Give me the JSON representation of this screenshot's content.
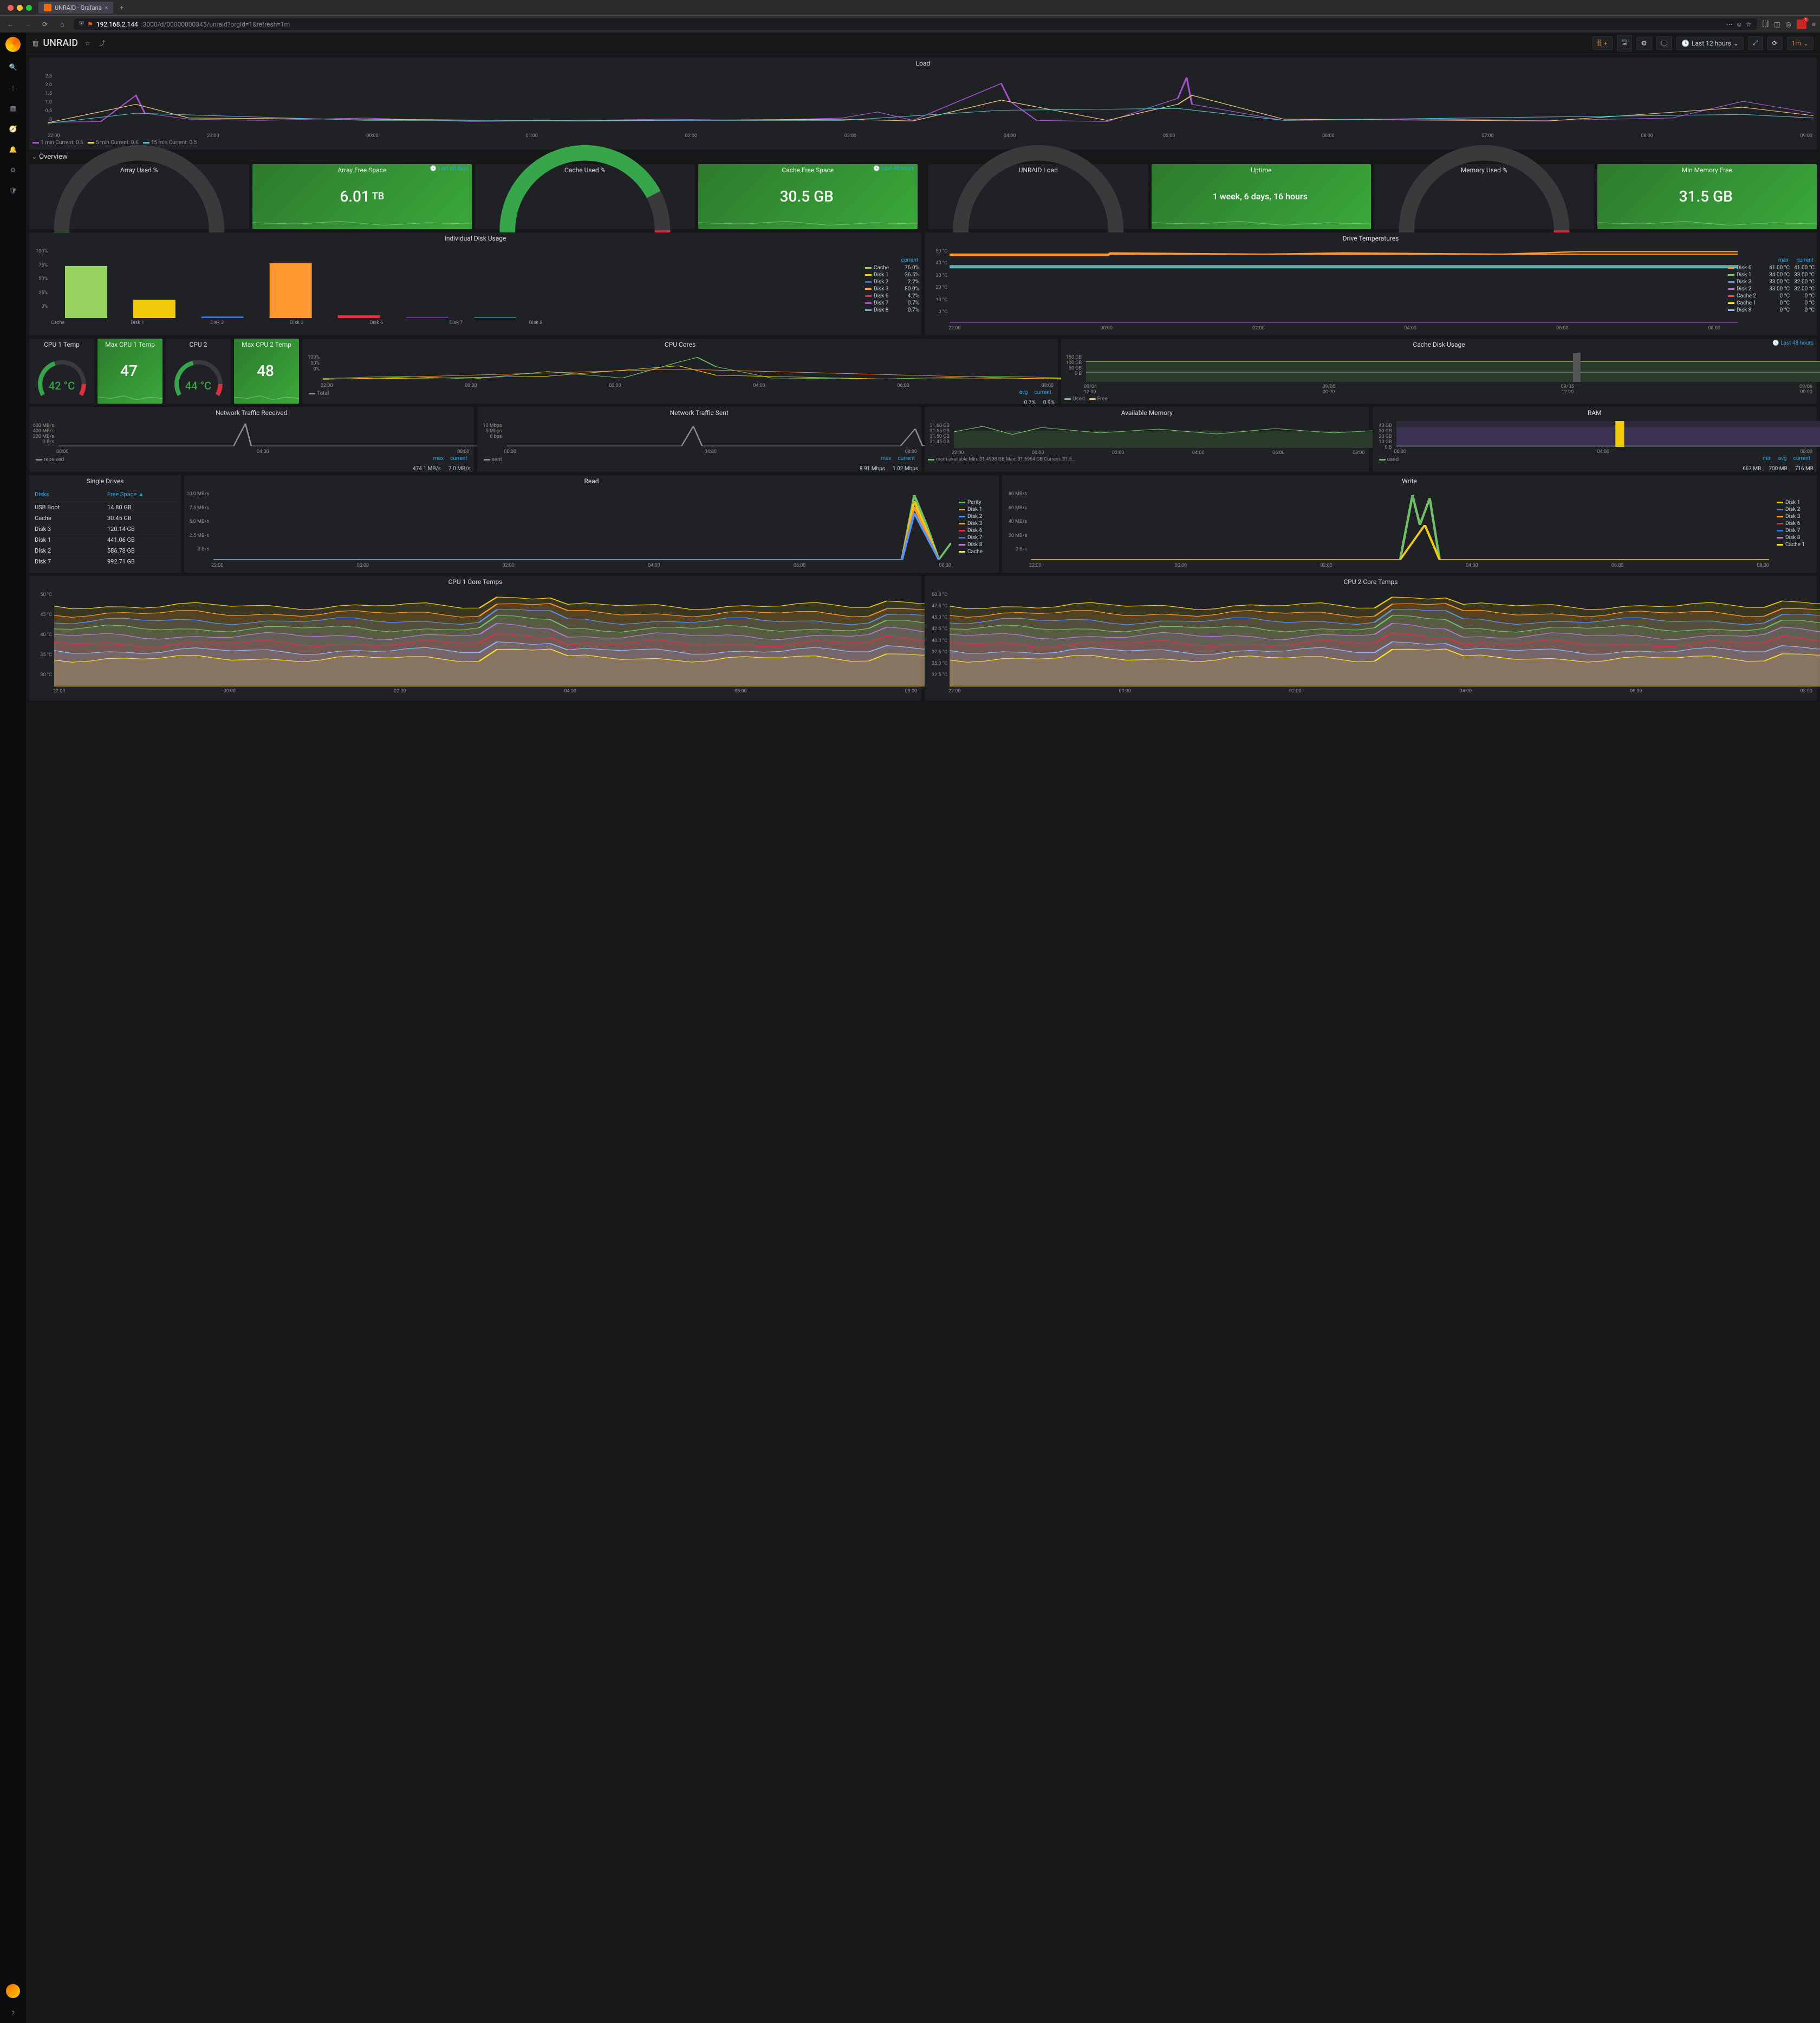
{
  "browser": {
    "tab_title": "UNRAID - Grafana",
    "url_prefix": "192.168.2.144",
    "url_suffix": ":3000/d/00000000345/unraid?orgId=1&refresh=1m"
  },
  "topbar": {
    "title": "UNRAID",
    "time_range": "Last 12 hours",
    "refresh": "1m"
  },
  "row_overview": "Overview",
  "load_panel": {
    "title": "Load",
    "yticks": [
      "2.5",
      "2.0",
      "1.5",
      "1.0",
      "0.5",
      "0"
    ],
    "xticks": [
      "22:00",
      "23:00",
      "00:00",
      "01:00",
      "02:00",
      "03:00",
      "04:00",
      "05:00",
      "06:00",
      "07:00",
      "08:00",
      "09:00"
    ],
    "legend": [
      {
        "label": "1 min",
        "current": "0.6",
        "color": "#a352cc"
      },
      {
        "label": "5 min",
        "current": "0.6",
        "color": "#e5c07b"
      },
      {
        "label": "15 min",
        "current": "0.5",
        "color": "#56b6c2"
      }
    ]
  },
  "stat_row1": [
    {
      "type": "gauge",
      "title": "Array Used %",
      "value": "12%",
      "color": "#37a64a",
      "pct": 0.12
    },
    {
      "type": "bigstat",
      "title": "Array Free Space",
      "corner": "Last 60 days",
      "value": "6.01",
      "unit": "TB"
    },
    {
      "type": "gauge",
      "title": "Cache Used %",
      "value": "76%",
      "color": "#37a64a",
      "pct": 0.76,
      "warn": true
    },
    {
      "type": "bigstat",
      "title": "Cache Free Space",
      "corner": "Last 48 hours",
      "value": "30.5 GB",
      "unit": ""
    },
    {
      "type": "gauge",
      "title": "UNRAID Load",
      "value": "0.25%",
      "color": "#37a64a",
      "pct": 0.04
    },
    {
      "type": "bigstat",
      "title": "Uptime",
      "value": "1 week, 6 days, 16 hours",
      "unit": "",
      "small": true
    },
    {
      "type": "gauge",
      "title": "Memory Used %",
      "value": "2.1%",
      "color": "#37a64a",
      "pct": 0.05,
      "warn": true
    },
    {
      "type": "bigstat",
      "title": "Min Memory Free",
      "value": "31.5 GB",
      "unit": ""
    }
  ],
  "disk_usage": {
    "title": "Individual Disk Usage",
    "yticks": [
      "100%",
      "75%",
      "50%",
      "25%",
      "0%"
    ],
    "bars": [
      {
        "name": "Cache",
        "v": 76.0,
        "color": "#96d35f"
      },
      {
        "name": "Disk 1",
        "v": 26.5,
        "color": "#f2cc0c"
      },
      {
        "name": "Disk 2",
        "v": 2.2,
        "color": "#3274d9"
      },
      {
        "name": "Disk 3",
        "v": 80.0,
        "color": "#ff9830"
      },
      {
        "name": "Disk 6",
        "v": 4.2,
        "color": "#e02f44"
      },
      {
        "name": "Disk 7",
        "v": 0.7,
        "color": "#a352cc"
      },
      {
        "name": "Disk 8",
        "v": 0.7,
        "color": "#56b6c2"
      }
    ],
    "legend_hdr": "current"
  },
  "drive_temps": {
    "title": "Drive Temperatures",
    "yticks": [
      "50 °C",
      "40 °C",
      "30 °C",
      "20 °C",
      "10 °C",
      "0 °C"
    ],
    "xticks": [
      "22:00",
      "00:00",
      "02:00",
      "04:00",
      "06:00",
      "08:00"
    ],
    "hdr_max": "max",
    "hdr_cur": "current",
    "rows": [
      {
        "name": "Disk 6",
        "max": "41.00 °C",
        "cur": "41.00 °C",
        "color": "#ff9830"
      },
      {
        "name": "Disk 1",
        "max": "34.00 °C",
        "cur": "33.00 °C",
        "color": "#73bf69"
      },
      {
        "name": "Disk 3",
        "max": "33.00 °C",
        "cur": "32.00 °C",
        "color": "#5794f2"
      },
      {
        "name": "Disk 2",
        "max": "33.00 °C",
        "cur": "32.00 °C",
        "color": "#b877d9"
      },
      {
        "name": "Cache 2",
        "max": "0 °C",
        "cur": "0 °C",
        "color": "#f2495c"
      },
      {
        "name": "Cache 1",
        "max": "0 °C",
        "cur": "0 °C",
        "color": "#fade2a"
      },
      {
        "name": "Disk 8",
        "max": "0 °C",
        "cur": "0 °C",
        "color": "#8ab8ff"
      }
    ]
  },
  "cpu_row": [
    {
      "type": "gauge",
      "title": "CPU 1 Temp",
      "value": "42 °C",
      "color": "#37a64a",
      "pct": 0.42,
      "warn": true
    },
    {
      "type": "bigstat",
      "title": "Max CPU 1 Temp",
      "value": "47",
      "unit": ""
    },
    {
      "type": "gauge",
      "title": "CPU 2",
      "value": "44 °C",
      "color": "#37a64a",
      "pct": 0.44,
      "warn": true
    },
    {
      "type": "bigstat",
      "title": "Max CPU 2 Temp",
      "value": "48",
      "unit": ""
    }
  ],
  "cpu_cores": {
    "title": "CPU Cores",
    "yticks": [
      "100%",
      "50%",
      "0%"
    ],
    "xticks": [
      "22:00",
      "00:00",
      "02:00",
      "04:00",
      "06:00",
      "08:00"
    ],
    "legend": {
      "name": "Total",
      "avg": "0.7%",
      "cur": "0.9%"
    },
    "hdr_avg": "avg",
    "hdr_cur": "current"
  },
  "cache_disk": {
    "title": "Cache Disk Usage",
    "corner": "Last 48 hours",
    "yticks": [
      "150 GB",
      "100 GB",
      "50 GB",
      "0 B"
    ],
    "xticks": [
      "09/04",
      "09/05",
      "09/05",
      "09/06"
    ],
    "xticks2": [
      "12:00",
      "00:00",
      "12:00",
      "00:00"
    ],
    "legend": [
      {
        "name": "Used",
        "color": "#73bf69"
      },
      {
        "name": "Free",
        "color": "#f2cc0c"
      }
    ]
  },
  "net_rx": {
    "title": "Network Traffic Received",
    "yticks": [
      "600 MB/s",
      "400 MB/s",
      "200 MB/s",
      "0 B/s"
    ],
    "xticks": [
      "00:00",
      "04:00",
      "08:00"
    ],
    "name": "received",
    "max": "474.1 MB/s",
    "cur": "7.0 MB/s",
    "hdr_max": "max",
    "hdr_cur": "current"
  },
  "net_tx": {
    "title": "Network Traffic Sent",
    "yticks": [
      "10 Mbps",
      "5 Mbps",
      "0 bps"
    ],
    "xticks": [
      "00:00",
      "04:00",
      "08:00"
    ],
    "name": "sent",
    "max": "8.91 Mbps",
    "cur": "1.02 Mbps",
    "hdr_max": "max",
    "hdr_cur": "current"
  },
  "avail_mem": {
    "title": "Available Memory",
    "yticks": [
      "31.60 GB",
      "31.55 GB",
      "31.50 GB",
      "31.45 GB"
    ],
    "xticks": [
      "22:00",
      "00:00",
      "02:00",
      "04:00",
      "06:00",
      "08:00"
    ],
    "footer": "mem.available  Min: 31.4998 GB  Max: 31.5964 GB  Current: 31.5…"
  },
  "ram": {
    "title": "RAM",
    "yticks": [
      "40 GB",
      "30 GB",
      "20 GB",
      "10 GB",
      "0 B"
    ],
    "xticks": [
      "00:00",
      "04:00",
      "08:00"
    ],
    "name": "used",
    "min": "667 MB",
    "avg": "700 MB",
    "cur": "716 MB",
    "hdr_min": "min",
    "hdr_avg": "avg",
    "hdr_cur": "current"
  },
  "drives_table": {
    "title": "Single Drives",
    "col_disk": "Disks",
    "col_free": "Free Space",
    "sort": "▲",
    "rows": [
      {
        "d": "USB Boot",
        "f": "14.80 GB"
      },
      {
        "d": "Cache",
        "f": "30.45 GB"
      },
      {
        "d": "Disk 3",
        "f": "120.14 GB"
      },
      {
        "d": "Disk 1",
        "f": "441.06 GB"
      },
      {
        "d": "Disk 2",
        "f": "586.78 GB"
      },
      {
        "d": "Disk 7",
        "f": "992.71 GB"
      }
    ]
  },
  "read": {
    "title": "Read",
    "yticks": [
      "10.0 MB/s",
      "7.5 MB/s",
      "5.0 MB/s",
      "2.5 MB/s",
      "0 B/s"
    ],
    "xticks": [
      "22:00",
      "00:00",
      "02:00",
      "04:00",
      "06:00",
      "08:00"
    ],
    "series": [
      {
        "name": "Parity",
        "color": "#73bf69"
      },
      {
        "name": "Disk 1",
        "color": "#f2cc0c"
      },
      {
        "name": "Disk 2",
        "color": "#5794f2"
      },
      {
        "name": "Disk 3",
        "color": "#ff9830"
      },
      {
        "name": "Disk 6",
        "color": "#e02f44"
      },
      {
        "name": "Disk 7",
        "color": "#3274d9"
      },
      {
        "name": "Disk 8",
        "color": "#b877d9"
      },
      {
        "name": "Cache",
        "color": "#fade2a"
      }
    ]
  },
  "write": {
    "title": "Write",
    "yticks": [
      "80 MB/s",
      "60 MB/s",
      "40 MB/s",
      "20 MB/s",
      "0 B/s"
    ],
    "xticks": [
      "22:00",
      "00:00",
      "02:00",
      "04:00",
      "06:00",
      "08:00"
    ],
    "series": [
      {
        "name": "Disk 1",
        "color": "#f2cc0c"
      },
      {
        "name": "Disk 2",
        "color": "#5794f2"
      },
      {
        "name": "Disk 3",
        "color": "#ff9830"
      },
      {
        "name": "Disk 6",
        "color": "#e02f44"
      },
      {
        "name": "Disk 7",
        "color": "#3274d9"
      },
      {
        "name": "Disk 8",
        "color": "#b877d9"
      },
      {
        "name": "Cache 1",
        "color": "#fade2a"
      }
    ]
  },
  "cpu1_cores": {
    "title": "CPU 1 Core Temps",
    "yticks": [
      "50 °C",
      "45 °C",
      "40 °C",
      "35 °C",
      "30 °C"
    ],
    "xticks": [
      "22:00",
      "00:00",
      "02:00",
      "04:00",
      "06:00",
      "08:00"
    ],
    "colors": [
      "#f2cc0c",
      "#ff9830",
      "#5794f2",
      "#73bf69",
      "#b877d9",
      "#e02f44",
      "#8ab8ff",
      "#fade2a"
    ]
  },
  "cpu2_cores": {
    "title": "CPU 2 Core Temps",
    "yticks": [
      "50.0 °C",
      "47.5 °C",
      "45.0 °C",
      "42.5 °C",
      "40.0 °C",
      "37.5 °C",
      "35.0 °C",
      "32.5 °C"
    ],
    "xticks": [
      "22:00",
      "00:00",
      "02:00",
      "04:00",
      "06:00",
      "08:00"
    ],
    "colors": [
      "#f2cc0c",
      "#ff9830",
      "#5794f2",
      "#73bf69",
      "#b877d9",
      "#e02f44",
      "#8ab8ff",
      "#fade2a"
    ]
  }
}
